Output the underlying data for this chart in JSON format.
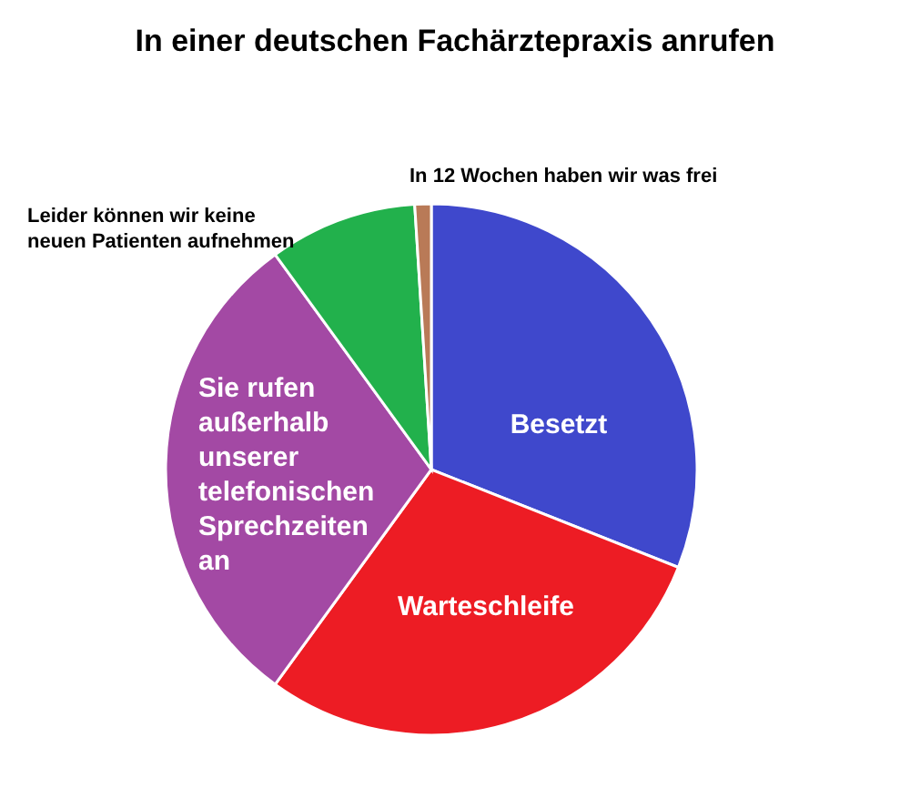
{
  "chart_data": {
    "type": "pie",
    "title": "In einer deutschen Fachärztepraxis anrufen",
    "categories": [
      "Besetzt",
      "Warteschleife",
      "Sie rufen außerhalb unserer telefonischen Sprechzeiten an",
      "Leider können wir keine neuen Patienten aufnehmen",
      "In 12 Wochen haben wir was frei"
    ],
    "values": [
      31,
      29,
      30,
      9,
      1
    ],
    "colors": [
      "#3f48cc",
      "#ed1c24",
      "#a349a4",
      "#22b14c",
      "#b97a57"
    ]
  }
}
